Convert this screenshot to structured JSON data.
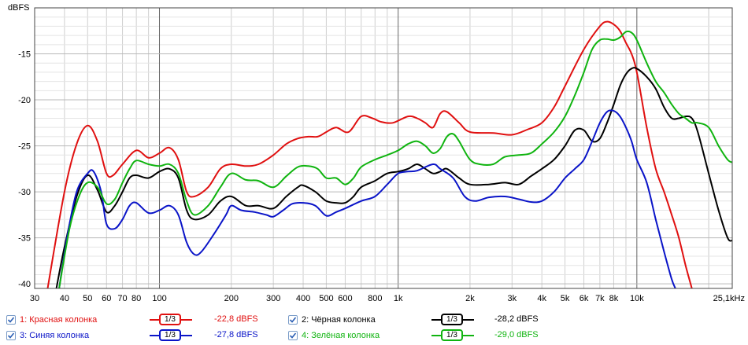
{
  "chart_data": {
    "type": "line",
    "ylabel": "dBFS",
    "xscale": "log",
    "xlim": [
      30,
      25100
    ],
    "ylim": [
      -40.5,
      -10
    ],
    "grid": true,
    "x_tick_labels": [
      "30",
      "40",
      "50",
      "60",
      "70",
      "80",
      "100",
      "200",
      "300",
      "400",
      "500",
      "600",
      "800",
      "1k",
      "2k",
      "3k",
      "4k",
      "5k",
      "6k",
      "7k",
      "8k",
      "10k",
      "25,1kHz"
    ],
    "x_tick_values": [
      30,
      40,
      50,
      60,
      70,
      80,
      100,
      200,
      300,
      400,
      500,
      600,
      800,
      1000,
      2000,
      3000,
      4000,
      5000,
      6000,
      7000,
      8000,
      10000,
      25100
    ],
    "y_ticks": [
      -15,
      -20,
      -25,
      -30,
      -35,
      -40
    ],
    "y_tick_labels": [
      "-15",
      "-20",
      "-25",
      "-30",
      "-35",
      "-40"
    ],
    "series": [
      {
        "name": "1: Красная колонка",
        "color": "#e01010",
        "smoothing": "1/3",
        "level": "-22,8 dBFS",
        "points": [
          [
            34,
            -40.5
          ],
          [
            40,
            -30
          ],
          [
            45,
            -24.8
          ],
          [
            50,
            -22.8
          ],
          [
            55,
            -24.5
          ],
          [
            60,
            -28
          ],
          [
            64,
            -28.2
          ],
          [
            70,
            -27
          ],
          [
            80,
            -25.5
          ],
          [
            90,
            -26.3
          ],
          [
            100,
            -25.8
          ],
          [
            110,
            -25.2
          ],
          [
            120,
            -26.5
          ],
          [
            130,
            -30
          ],
          [
            140,
            -30.5
          ],
          [
            160,
            -29.5
          ],
          [
            180,
            -27.5
          ],
          [
            200,
            -27
          ],
          [
            230,
            -27.2
          ],
          [
            260,
            -27
          ],
          [
            300,
            -26
          ],
          [
            340,
            -24.8
          ],
          [
            380,
            -24.2
          ],
          [
            420,
            -24
          ],
          [
            460,
            -24
          ],
          [
            500,
            -23.5
          ],
          [
            550,
            -23
          ],
          [
            620,
            -23.5
          ],
          [
            700,
            -21.8
          ],
          [
            780,
            -22
          ],
          [
            850,
            -22.4
          ],
          [
            950,
            -22.5
          ],
          [
            1100,
            -21.8
          ],
          [
            1200,
            -22
          ],
          [
            1300,
            -22.5
          ],
          [
            1400,
            -23
          ],
          [
            1500,
            -21.5
          ],
          [
            1600,
            -21.3
          ],
          [
            1800,
            -22.5
          ],
          [
            2000,
            -23.5
          ],
          [
            2500,
            -23.6
          ],
          [
            3000,
            -23.8
          ],
          [
            3500,
            -23.2
          ],
          [
            4000,
            -22.5
          ],
          [
            4500,
            -20.8
          ],
          [
            5000,
            -18.5
          ],
          [
            6000,
            -14.5
          ],
          [
            7000,
            -12
          ],
          [
            7500,
            -11.5
          ],
          [
            8000,
            -11.8
          ],
          [
            8500,
            -12.5
          ],
          [
            9000,
            -13.8
          ],
          [
            9500,
            -15
          ],
          [
            10000,
            -17
          ],
          [
            11000,
            -23
          ],
          [
            12000,
            -27.5
          ],
          [
            13000,
            -30
          ],
          [
            14000,
            -32.5
          ],
          [
            15000,
            -35
          ],
          [
            16000,
            -38
          ],
          [
            17000,
            -40.5
          ]
        ]
      },
      {
        "name": "2: Чёрная колонка",
        "color": "#000000",
        "smoothing": "1/3",
        "level": "-28,2 dBFS",
        "points": [
          [
            37,
            -40.5
          ],
          [
            40,
            -36
          ],
          [
            45,
            -30.5
          ],
          [
            50,
            -28.2
          ],
          [
            55,
            -29.8
          ],
          [
            60,
            -32.2
          ],
          [
            65,
            -31.5
          ],
          [
            70,
            -30
          ],
          [
            75,
            -28.5
          ],
          [
            80,
            -28.2
          ],
          [
            90,
            -28.5
          ],
          [
            100,
            -27.8
          ],
          [
            110,
            -27.5
          ],
          [
            120,
            -28.5
          ],
          [
            130,
            -32
          ],
          [
            140,
            -33
          ],
          [
            160,
            -32.5
          ],
          [
            180,
            -31
          ],
          [
            200,
            -30.5
          ],
          [
            230,
            -31.5
          ],
          [
            260,
            -31.5
          ],
          [
            300,
            -31.8
          ],
          [
            340,
            -30.5
          ],
          [
            380,
            -29.5
          ],
          [
            400,
            -29.3
          ],
          [
            450,
            -30
          ],
          [
            500,
            -31
          ],
          [
            550,
            -31.2
          ],
          [
            600,
            -31.2
          ],
          [
            650,
            -30.5
          ],
          [
            700,
            -29.5
          ],
          [
            800,
            -28.8
          ],
          [
            900,
            -28
          ],
          [
            1000,
            -27.8
          ],
          [
            1100,
            -27.5
          ],
          [
            1200,
            -27
          ],
          [
            1300,
            -27.5
          ],
          [
            1400,
            -28
          ],
          [
            1500,
            -27.8
          ],
          [
            1600,
            -27.5
          ],
          [
            1800,
            -28.5
          ],
          [
            2000,
            -29.2
          ],
          [
            2400,
            -29.2
          ],
          [
            2800,
            -29
          ],
          [
            3200,
            -29.2
          ],
          [
            3600,
            -28.3
          ],
          [
            4000,
            -27.5
          ],
          [
            4500,
            -26.5
          ],
          [
            5000,
            -25
          ],
          [
            5500,
            -23.3
          ],
          [
            6000,
            -23.3
          ],
          [
            6500,
            -24.5
          ],
          [
            7000,
            -24.2
          ],
          [
            7500,
            -22.5
          ],
          [
            8000,
            -20.5
          ],
          [
            8500,
            -18.5
          ],
          [
            9000,
            -17.2
          ],
          [
            9500,
            -16.6
          ],
          [
            10000,
            -16.6
          ],
          [
            11000,
            -17.5
          ],
          [
            12000,
            -18.8
          ],
          [
            13000,
            -20.8
          ],
          [
            14000,
            -22
          ],
          [
            15000,
            -22
          ],
          [
            16000,
            -21.8
          ],
          [
            17000,
            -22
          ],
          [
            18000,
            -23.5
          ],
          [
            20000,
            -28
          ],
          [
            22000,
            -32
          ],
          [
            24000,
            -35
          ],
          [
            25100,
            -35.3
          ]
        ]
      },
      {
        "name": "3: Синяя колонка",
        "color": "#0a14c8",
        "smoothing": "1/3",
        "level": "-27,8 dBFS",
        "points": [
          [
            38,
            -40.5
          ],
          [
            41,
            -35
          ],
          [
            45,
            -30
          ],
          [
            50,
            -28
          ],
          [
            53,
            -27.8
          ],
          [
            57,
            -30
          ],
          [
            60,
            -33.5
          ],
          [
            65,
            -34
          ],
          [
            70,
            -33
          ],
          [
            75,
            -31.5
          ],
          [
            80,
            -31.2
          ],
          [
            90,
            -32.3
          ],
          [
            100,
            -32
          ],
          [
            110,
            -31.5
          ],
          [
            120,
            -32.5
          ],
          [
            130,
            -35.5
          ],
          [
            140,
            -36.8
          ],
          [
            150,
            -36.5
          ],
          [
            170,
            -34.5
          ],
          [
            190,
            -32.5
          ],
          [
            200,
            -31.5
          ],
          [
            220,
            -32
          ],
          [
            250,
            -32.2
          ],
          [
            280,
            -32.5
          ],
          [
            300,
            -32.7
          ],
          [
            330,
            -32
          ],
          [
            360,
            -31.3
          ],
          [
            400,
            -31.2
          ],
          [
            450,
            -31.5
          ],
          [
            500,
            -32.6
          ],
          [
            550,
            -32.2
          ],
          [
            600,
            -31.8
          ],
          [
            700,
            -31
          ],
          [
            800,
            -30.5
          ],
          [
            900,
            -29.2
          ],
          [
            1000,
            -28
          ],
          [
            1100,
            -27.8
          ],
          [
            1200,
            -27.7
          ],
          [
            1400,
            -27
          ],
          [
            1500,
            -27.5
          ],
          [
            1700,
            -28.5
          ],
          [
            1900,
            -30.5
          ],
          [
            2100,
            -31
          ],
          [
            2400,
            -30.6
          ],
          [
            2800,
            -30.5
          ],
          [
            3200,
            -30.8
          ],
          [
            3600,
            -31.1
          ],
          [
            4000,
            -31
          ],
          [
            4500,
            -30
          ],
          [
            5000,
            -28.5
          ],
          [
            5500,
            -27.5
          ],
          [
            6000,
            -26.5
          ],
          [
            6500,
            -24.5
          ],
          [
            7000,
            -22.5
          ],
          [
            7500,
            -21.3
          ],
          [
            8000,
            -21.2
          ],
          [
            8500,
            -21.8
          ],
          [
            9000,
            -23
          ],
          [
            9500,
            -24.5
          ],
          [
            10000,
            -26.5
          ],
          [
            11000,
            -29
          ],
          [
            12000,
            -33
          ],
          [
            13000,
            -36.5
          ],
          [
            14000,
            -39.5
          ],
          [
            14500,
            -40.5
          ]
        ]
      },
      {
        "name": "4: Зелёная колонка",
        "color": "#10b410",
        "smoothing": "1/3",
        "level": "-29,0 dBFS",
        "points": [
          [
            38,
            -40.5
          ],
          [
            42,
            -34
          ],
          [
            46,
            -30.5
          ],
          [
            50,
            -29
          ],
          [
            55,
            -29.5
          ],
          [
            60,
            -31.3
          ],
          [
            65,
            -30.8
          ],
          [
            70,
            -29
          ],
          [
            75,
            -27.5
          ],
          [
            80,
            -26.6
          ],
          [
            90,
            -27
          ],
          [
            100,
            -27.2
          ],
          [
            110,
            -27
          ],
          [
            120,
            -28
          ],
          [
            130,
            -31
          ],
          [
            140,
            -32.5
          ],
          [
            160,
            -31.5
          ],
          [
            180,
            -29.5
          ],
          [
            200,
            -28
          ],
          [
            230,
            -28.7
          ],
          [
            260,
            -28.8
          ],
          [
            300,
            -29.5
          ],
          [
            340,
            -28.3
          ],
          [
            380,
            -27.3
          ],
          [
            420,
            -27.2
          ],
          [
            460,
            -27.5
          ],
          [
            500,
            -28.5
          ],
          [
            550,
            -28.5
          ],
          [
            600,
            -29.2
          ],
          [
            650,
            -28.5
          ],
          [
            700,
            -27.3
          ],
          [
            800,
            -26.5
          ],
          [
            900,
            -26
          ],
          [
            1000,
            -25.5
          ],
          [
            1100,
            -24.8
          ],
          [
            1200,
            -24.5
          ],
          [
            1300,
            -25
          ],
          [
            1400,
            -25.8
          ],
          [
            1500,
            -25.3
          ],
          [
            1600,
            -24
          ],
          [
            1700,
            -23.7
          ],
          [
            1800,
            -24.5
          ],
          [
            2000,
            -26.5
          ],
          [
            2200,
            -27
          ],
          [
            2500,
            -27
          ],
          [
            2800,
            -26.2
          ],
          [
            3200,
            -26
          ],
          [
            3600,
            -25.8
          ],
          [
            4000,
            -24.8
          ],
          [
            4500,
            -23.5
          ],
          [
            5000,
            -21.8
          ],
          [
            5500,
            -19.5
          ],
          [
            6000,
            -17
          ],
          [
            6500,
            -14.5
          ],
          [
            7000,
            -13.5
          ],
          [
            7500,
            -13.4
          ],
          [
            8000,
            -13.5
          ],
          [
            8500,
            -13.2
          ],
          [
            9000,
            -12.6
          ],
          [
            9500,
            -12.7
          ],
          [
            10000,
            -13.5
          ],
          [
            11000,
            -16
          ],
          [
            12000,
            -18
          ],
          [
            13000,
            -19.2
          ],
          [
            14000,
            -20.5
          ],
          [
            15000,
            -21.5
          ],
          [
            16000,
            -22
          ],
          [
            17000,
            -22.5
          ],
          [
            18000,
            -22.5
          ],
          [
            20000,
            -23
          ],
          [
            22000,
            -25
          ],
          [
            24000,
            -26.5
          ],
          [
            25100,
            -26.8
          ]
        ]
      }
    ]
  }
}
